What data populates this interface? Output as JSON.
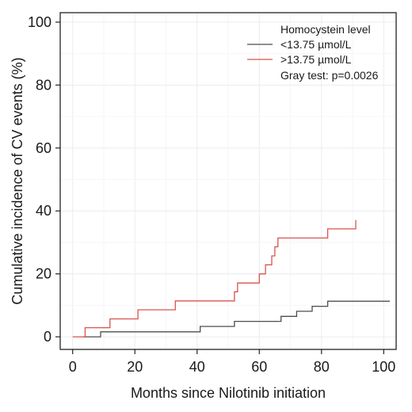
{
  "chart_data": {
    "type": "line",
    "step": true,
    "xlabel": "Months since Nilotinib initiation",
    "ylabel": "Cumulative incidence of CV events (%)",
    "xlim": [
      -4,
      104
    ],
    "ylim": [
      -4,
      103
    ],
    "xticks": [
      0,
      20,
      40,
      60,
      80,
      100
    ],
    "yticks": [
      0,
      20,
      40,
      60,
      80,
      100
    ],
    "grid": true,
    "legend": {
      "title": "Homocystein level",
      "note": "Gray test: p=0.0026",
      "placement": "top-right"
    },
    "series": [
      {
        "name": "<13.75 µmol/L",
        "color": "#4d4d4d",
        "x": [
          3,
          9,
          9,
          41,
          41,
          52,
          52,
          67,
          67,
          72,
          72,
          77,
          77,
          82,
          82,
          87,
          87,
          102
        ],
        "y": [
          0,
          0,
          1.6,
          1.6,
          3.3,
          3.3,
          4.9,
          4.9,
          6.5,
          6.5,
          8.1,
          8.1,
          9.7,
          9.7,
          11.3,
          11.3,
          11.3,
          11.3
        ]
      },
      {
        "name": ">13.75 µmol/L",
        "color": "#d9534f",
        "x": [
          0,
          4,
          4,
          12,
          12,
          21,
          21,
          33,
          33,
          52,
          52,
          53,
          53,
          54,
          54,
          60,
          60,
          62,
          62,
          64,
          64,
          65,
          65,
          66,
          66,
          67,
          67,
          82,
          82,
          91,
          91
        ],
        "y": [
          0,
          0,
          2.9,
          2.9,
          5.7,
          5.7,
          8.6,
          8.6,
          11.4,
          11.4,
          14.3,
          14.3,
          17.1,
          17.1,
          17.1,
          17.1,
          20.0,
          20.0,
          22.9,
          22.9,
          25.7,
          25.7,
          28.6,
          28.6,
          31.4,
          31.4,
          31.4,
          31.4,
          34.3,
          34.3,
          37.1
        ]
      }
    ]
  }
}
